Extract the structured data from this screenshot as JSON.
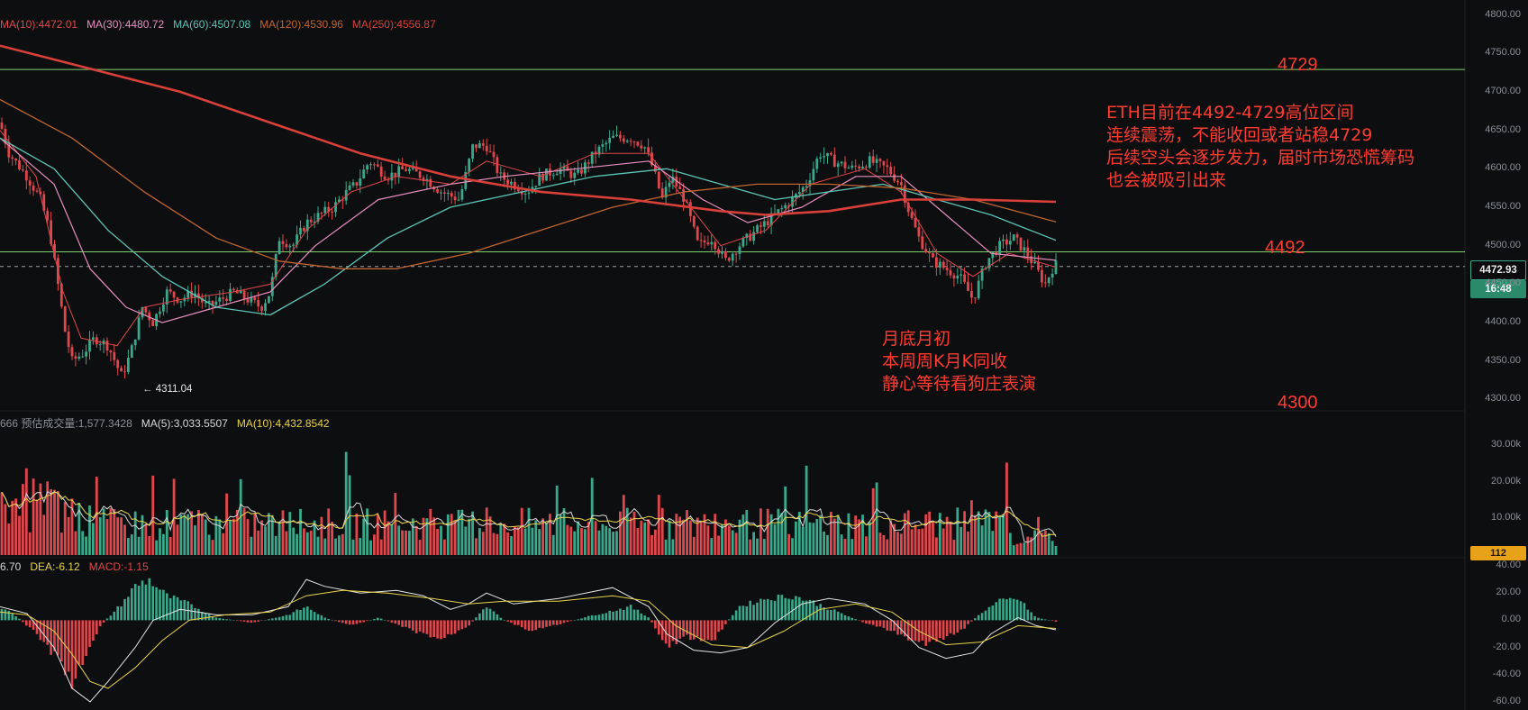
{
  "colors": {
    "background": "#0d0e10",
    "up": "#3aa88a",
    "down": "#e0474c",
    "annotation": "#ff3b30",
    "level_line": "#7ed36b",
    "ma10": "#e0474c",
    "ma30": "#e88fc0",
    "ma60": "#5bc4b4",
    "ma120": "#c0652f",
    "ma250": "#d9403a"
  },
  "price_header": [
    {
      "text": "MA(10):4472.01",
      "color": "#e0474c"
    },
    {
      "text": "MA(30):4480.72",
      "color": "#e88fc0"
    },
    {
      "text": "MA(60):4507.08",
      "color": "#5bc4b4"
    },
    {
      "text": "MA(120):4530.96",
      "color": "#c0652f"
    },
    {
      "text": "MA(250):4556.87",
      "color": "#d9403a"
    }
  ],
  "volume_header": [
    {
      "text": "666  预估成交量:1,577.3428",
      "color": "#8b8f96"
    },
    {
      "text": "MA(5):3,033.5507",
      "color": "#d8d8d8"
    },
    {
      "text": "MA(10):4,432.8542",
      "color": "#e8d34a"
    }
  ],
  "macd_header": [
    {
      "text": "6.70",
      "color": "#d8d8d8"
    },
    {
      "text": "DEA:-6.12",
      "color": "#e8d34a"
    },
    {
      "text": "MACD:-1.15",
      "color": "#e0474c"
    }
  ],
  "annotations": {
    "main_note": [
      "ETH目前在4492-4729高位区间",
      "连续震荡，不能收回或者站稳4729",
      "后续空头会逐步发力，届时市场恐慌筹码",
      "也会被吸引出来"
    ],
    "month_note": [
      "月底月初",
      "本周周K月K同收",
      "静心等待看狗庄表演"
    ],
    "level_4729": "4729",
    "level_4492": "4492",
    "level_4300": "4300",
    "low_marker": "← 4311.04"
  },
  "price_tags": {
    "current_price": "4472.93",
    "countdown": "16:48",
    "volume_last": "112"
  },
  "chart_data": [
    {
      "type": "candlestick",
      "panel": "price",
      "y_ticks": [
        "4800.00",
        "4750.00",
        "4700.00",
        "4650.00",
        "4600.00",
        "4550.00",
        "4500.00",
        "4450.00",
        "4400.00",
        "4350.00",
        "4300.00"
      ],
      "ylim": [
        4290,
        4810
      ],
      "horizontal_levels": [
        4729,
        4492
      ],
      "current_price": 4472.93,
      "low": 4311.04,
      "path_anchors": [
        [
          0,
          4660
        ],
        [
          10,
          4620
        ],
        [
          30,
          4590
        ],
        [
          45,
          4560
        ],
        [
          55,
          4520
        ],
        [
          63,
          4460
        ],
        [
          72,
          4390
        ],
        [
          80,
          4350
        ],
        [
          92,
          4360
        ],
        [
          105,
          4380
        ],
        [
          120,
          4370
        ],
        [
          135,
          4330
        ],
        [
          145,
          4360
        ],
        [
          158,
          4420
        ],
        [
          170,
          4400
        ],
        [
          185,
          4440
        ],
        [
          200,
          4430
        ],
        [
          215,
          4440
        ],
        [
          230,
          4420
        ],
        [
          245,
          4430
        ],
        [
          260,
          4440
        ],
        [
          275,
          4430
        ],
        [
          290,
          4420
        ],
        [
          300,
          4440
        ],
        [
          310,
          4510
        ],
        [
          325,
          4500
        ],
        [
          340,
          4530
        ],
        [
          355,
          4540
        ],
        [
          370,
          4550
        ],
        [
          385,
          4570
        ],
        [
          395,
          4580
        ],
        [
          410,
          4610
        ],
        [
          430,
          4590
        ],
        [
          450,
          4600
        ],
        [
          470,
          4590
        ],
        [
          490,
          4570
        ],
        [
          510,
          4560
        ],
        [
          525,
          4630
        ],
        [
          540,
          4630
        ],
        [
          555,
          4590
        ],
        [
          570,
          4580
        ],
        [
          585,
          4570
        ],
        [
          600,
          4590
        ],
        [
          620,
          4600
        ],
        [
          640,
          4590
        ],
        [
          660,
          4620
        ],
        [
          680,
          4640
        ],
        [
          700,
          4640
        ],
        [
          715,
          4630
        ],
        [
          725,
          4600
        ],
        [
          735,
          4560
        ],
        [
          745,
          4590
        ],
        [
          760,
          4560
        ],
        [
          775,
          4500
        ],
        [
          790,
          4510
        ],
        [
          805,
          4480
        ],
        [
          820,
          4500
        ],
        [
          840,
          4520
        ],
        [
          860,
          4540
        ],
        [
          880,
          4560
        ],
        [
          895,
          4580
        ],
        [
          910,
          4620
        ],
        [
          925,
          4610
        ],
        [
          945,
          4600
        ],
        [
          965,
          4610
        ],
        [
          985,
          4600
        ],
        [
          1000,
          4580
        ],
        [
          1010,
          4540
        ],
        [
          1020,
          4510
        ],
        [
          1035,
          4480
        ],
        [
          1050,
          4470
        ],
        [
          1065,
          4460
        ],
        [
          1080,
          4430
        ],
        [
          1095,
          4480
        ],
        [
          1110,
          4500
        ],
        [
          1125,
          4510
        ],
        [
          1140,
          4490
        ],
        [
          1150,
          4470
        ],
        [
          1160,
          4450
        ],
        [
          1170,
          4475
        ]
      ],
      "moving_averages": {
        "MA10": [
          [
            0,
            4650
          ],
          [
            40,
            4590
          ],
          [
            70,
            4440
          ],
          [
            90,
            4380
          ],
          [
            130,
            4370
          ],
          [
            160,
            4420
          ],
          [
            200,
            4430
          ],
          [
            260,
            4440
          ],
          [
            300,
            4450
          ],
          [
            340,
            4520
          ],
          [
            390,
            4570
          ],
          [
            440,
            4590
          ],
          [
            500,
            4580
          ],
          [
            540,
            4610
          ],
          [
            600,
            4590
          ],
          [
            660,
            4620
          ],
          [
            720,
            4620
          ],
          [
            760,
            4560
          ],
          [
            800,
            4500
          ],
          [
            850,
            4520
          ],
          [
            900,
            4580
          ],
          [
            960,
            4600
          ],
          [
            1000,
            4570
          ],
          [
            1040,
            4490
          ],
          [
            1080,
            4460
          ],
          [
            1120,
            4490
          ],
          [
            1172,
            4472
          ]
        ],
        "MA30": [
          [
            0,
            4640
          ],
          [
            60,
            4580
          ],
          [
            100,
            4470
          ],
          [
            140,
            4420
          ],
          [
            180,
            4400
          ],
          [
            240,
            4420
          ],
          [
            300,
            4440
          ],
          [
            350,
            4500
          ],
          [
            420,
            4560
          ],
          [
            500,
            4580
          ],
          [
            560,
            4590
          ],
          [
            640,
            4600
          ],
          [
            720,
            4610
          ],
          [
            780,
            4560
          ],
          [
            830,
            4530
          ],
          [
            890,
            4550
          ],
          [
            950,
            4590
          ],
          [
            1000,
            4590
          ],
          [
            1050,
            4540
          ],
          [
            1100,
            4490
          ],
          [
            1172,
            4481
          ]
        ],
        "MA60": [
          [
            0,
            4640
          ],
          [
            60,
            4600
          ],
          [
            120,
            4520
          ],
          [
            180,
            4460
          ],
          [
            240,
            4420
          ],
          [
            300,
            4410
          ],
          [
            360,
            4450
          ],
          [
            430,
            4510
          ],
          [
            500,
            4550
          ],
          [
            580,
            4570
          ],
          [
            660,
            4590
          ],
          [
            740,
            4600
          ],
          [
            800,
            4580
          ],
          [
            860,
            4560
          ],
          [
            920,
            4570
          ],
          [
            980,
            4580
          ],
          [
            1040,
            4560
          ],
          [
            1100,
            4540
          ],
          [
            1172,
            4507
          ]
        ],
        "MA120": [
          [
            0,
            4690
          ],
          [
            80,
            4640
          ],
          [
            160,
            4570
          ],
          [
            240,
            4510
          ],
          [
            310,
            4480
          ],
          [
            380,
            4470
          ],
          [
            440,
            4470
          ],
          [
            520,
            4490
          ],
          [
            600,
            4520
          ],
          [
            680,
            4550
          ],
          [
            760,
            4570
          ],
          [
            840,
            4580
          ],
          [
            920,
            4580
          ],
          [
            1000,
            4575
          ],
          [
            1080,
            4560
          ],
          [
            1172,
            4531
          ]
        ],
        "MA250": [
          [
            0,
            4760
          ],
          [
            100,
            4730
          ],
          [
            200,
            4700
          ],
          [
            300,
            4660
          ],
          [
            400,
            4620
          ],
          [
            500,
            4590
          ],
          [
            600,
            4570
          ],
          [
            700,
            4560
          ],
          [
            800,
            4545
          ],
          [
            850,
            4540
          ],
          [
            920,
            4545
          ],
          [
            1000,
            4560
          ],
          [
            1080,
            4560
          ],
          [
            1172,
            4557
          ]
        ]
      }
    },
    {
      "type": "bar",
      "panel": "volume",
      "y_ticks": [
        "30.00k",
        "20.00k",
        "10.00k"
      ],
      "ylim": [
        0,
        36000
      ],
      "last_value": 112
    },
    {
      "type": "bar+line",
      "panel": "macd",
      "y_ticks": [
        "40.00",
        "20.00",
        "0.00",
        "-20.00",
        "-40.00",
        "-60.00"
      ],
      "ylim": [
        -66,
        44
      ],
      "hist_anchors": [
        [
          0,
          10
        ],
        [
          20,
          2
        ],
        [
          40,
          -10
        ],
        [
          60,
          -25
        ],
        [
          80,
          -45
        ],
        [
          95,
          -30
        ],
        [
          110,
          -5
        ],
        [
          135,
          12
        ],
        [
          150,
          25
        ],
        [
          165,
          30
        ],
        [
          185,
          18
        ],
        [
          210,
          12
        ],
        [
          240,
          2
        ],
        [
          280,
          -2
        ],
        [
          320,
          4
        ],
        [
          340,
          10
        ],
        [
          360,
          2
        ],
        [
          390,
          -4
        ],
        [
          420,
          2
        ],
        [
          460,
          -8
        ],
        [
          490,
          -14
        ],
        [
          520,
          -4
        ],
        [
          540,
          10
        ],
        [
          560,
          0
        ],
        [
          590,
          -8
        ],
        [
          620,
          -3
        ],
        [
          660,
          4
        ],
        [
          700,
          10
        ],
        [
          720,
          2
        ],
        [
          740,
          -20
        ],
        [
          760,
          -12
        ],
        [
          790,
          -16
        ],
        [
          820,
          10
        ],
        [
          850,
          16
        ],
        [
          880,
          18
        ],
        [
          900,
          14
        ],
        [
          930,
          6
        ],
        [
          960,
          -2
        ],
        [
          990,
          -8
        ],
        [
          1010,
          -14
        ],
        [
          1030,
          -18
        ],
        [
          1050,
          -12
        ],
        [
          1070,
          -6
        ],
        [
          1090,
          6
        ],
        [
          1110,
          14
        ],
        [
          1130,
          16
        ],
        [
          1150,
          2
        ],
        [
          1172,
          -1
        ]
      ],
      "dif_anchors": [
        [
          0,
          10
        ],
        [
          30,
          5
        ],
        [
          60,
          -20
        ],
        [
          80,
          -50
        ],
        [
          100,
          -60
        ],
        [
          120,
          -45
        ],
        [
          150,
          -20
        ],
        [
          170,
          0
        ],
        [
          200,
          8
        ],
        [
          240,
          4
        ],
        [
          280,
          4
        ],
        [
          320,
          10
        ],
        [
          340,
          30
        ],
        [
          360,
          25
        ],
        [
          400,
          20
        ],
        [
          440,
          22
        ],
        [
          470,
          18
        ],
        [
          500,
          8
        ],
        [
          520,
          12
        ],
        [
          540,
          20
        ],
        [
          570,
          12
        ],
        [
          620,
          16
        ],
        [
          680,
          24
        ],
        [
          720,
          10
        ],
        [
          740,
          -10
        ],
        [
          770,
          -22
        ],
        [
          800,
          -24
        ],
        [
          830,
          -20
        ],
        [
          860,
          -2
        ],
        [
          890,
          12
        ],
        [
          920,
          16
        ],
        [
          960,
          12
        ],
        [
          990,
          0
        ],
        [
          1020,
          -20
        ],
        [
          1050,
          -28
        ],
        [
          1080,
          -24
        ],
        [
          1100,
          -10
        ],
        [
          1130,
          2
        ],
        [
          1150,
          -4
        ],
        [
          1172,
          -7
        ]
      ],
      "dea_anchors": [
        [
          0,
          6
        ],
        [
          30,
          4
        ],
        [
          60,
          -8
        ],
        [
          80,
          -25
        ],
        [
          100,
          -45
        ],
        [
          120,
          -50
        ],
        [
          150,
          -35
        ],
        [
          180,
          -15
        ],
        [
          210,
          0
        ],
        [
          250,
          4
        ],
        [
          300,
          6
        ],
        [
          340,
          18
        ],
        [
          380,
          22
        ],
        [
          430,
          20
        ],
        [
          480,
          16
        ],
        [
          520,
          12
        ],
        [
          560,
          14
        ],
        [
          620,
          14
        ],
        [
          680,
          18
        ],
        [
          720,
          14
        ],
        [
          750,
          -4
        ],
        [
          790,
          -18
        ],
        [
          830,
          -20
        ],
        [
          870,
          -8
        ],
        [
          910,
          8
        ],
        [
          950,
          12
        ],
        [
          990,
          6
        ],
        [
          1020,
          -8
        ],
        [
          1050,
          -18
        ],
        [
          1090,
          -16
        ],
        [
          1130,
          -4
        ],
        [
          1172,
          -6
        ]
      ]
    }
  ]
}
